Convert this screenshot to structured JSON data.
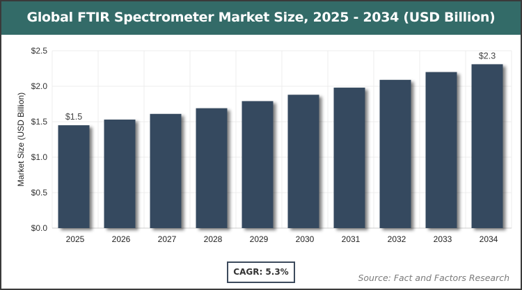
{
  "chart_data": {
    "type": "bar",
    "title": "Global FTIR Spectrometer Market Size, 2025 - 2034 (USD Billion)",
    "xlabel": "",
    "ylabel": "Market Size (USD Billion)",
    "ylim": [
      0,
      2.5
    ],
    "yticks": [
      "$0.0",
      "$0.5",
      "$1.0",
      "$1.5",
      "$2.0",
      "$2.5"
    ],
    "categories": [
      "2025",
      "2026",
      "2027",
      "2028",
      "2029",
      "2030",
      "2031",
      "2032",
      "2033",
      "2034"
    ],
    "values": [
      1.45,
      1.53,
      1.61,
      1.69,
      1.79,
      1.88,
      1.98,
      2.09,
      2.2,
      2.31
    ],
    "data_labels": {
      "0": "$1.5",
      "9": "$2.3"
    },
    "grid": true,
    "bar_color": "#364a5f",
    "header_color": "#336b68"
  },
  "footer": {
    "cagr": "CAGR: 5.3%",
    "source": "Source: Fact and Factors Research"
  }
}
